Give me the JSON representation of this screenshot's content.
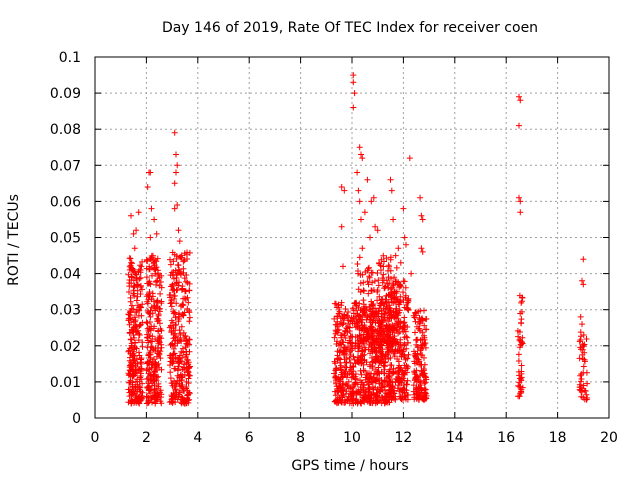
{
  "chart_data": {
    "type": "scatter",
    "title": "Day 146 of 2019, Rate Of TEC Index for receiver coen",
    "xlabel": "GPS time / hours",
    "ylabel": "ROTI / TECUs",
    "xlim": [
      0,
      20
    ],
    "ylim": [
      0,
      0.1
    ],
    "xticks": [
      "0",
      "2",
      "4",
      "6",
      "8",
      "10",
      "12",
      "14",
      "16",
      "18",
      "20"
    ],
    "yticks": [
      "0",
      "0.01",
      "0.02",
      "0.03",
      "0.04",
      "0.05",
      "0.06",
      "0.07",
      "0.08",
      "0.09",
      "0.1"
    ],
    "grid": true,
    "marker": "+",
    "color": "#ff0000",
    "clusters": [
      {
        "x_range": [
          1.3,
          1.85
        ],
        "y_range": [
          0.004,
          0.045
        ],
        "count": 260
      },
      {
        "x_range": [
          2.0,
          2.6
        ],
        "y_range": [
          0.004,
          0.045
        ],
        "count": 260
      },
      {
        "x_range": [
          2.9,
          3.7
        ],
        "y_range": [
          0.004,
          0.046
        ],
        "count": 300
      },
      {
        "x_range": [
          9.3,
          11.5
        ],
        "y_range": [
          0.004,
          0.032
        ],
        "count": 700
      },
      {
        "x_range": [
          10.2,
          11.8
        ],
        "y_range": [
          0.02,
          0.045
        ],
        "count": 220
      },
      {
        "x_range": [
          11.4,
          12.2
        ],
        "y_range": [
          0.005,
          0.038
        ],
        "count": 260
      },
      {
        "x_range": [
          12.4,
          12.9
        ],
        "y_range": [
          0.005,
          0.03
        ],
        "count": 160
      },
      {
        "x_range": [
          16.45,
          16.65
        ],
        "y_range": [
          0.006,
          0.035
        ],
        "count": 45
      },
      {
        "x_range": [
          18.85,
          19.15
        ],
        "y_range": [
          0.005,
          0.024
        ],
        "count": 45
      }
    ],
    "points": [
      [
        1.4,
        0.056
      ],
      [
        1.5,
        0.051
      ],
      [
        1.6,
        0.052
      ],
      [
        1.7,
        0.057
      ],
      [
        1.55,
        0.047
      ],
      [
        2.05,
        0.064
      ],
      [
        2.1,
        0.068
      ],
      [
        2.15,
        0.068
      ],
      [
        2.2,
        0.058
      ],
      [
        2.3,
        0.055
      ],
      [
        2.4,
        0.051
      ],
      [
        2.15,
        0.05
      ],
      [
        3.1,
        0.079
      ],
      [
        3.15,
        0.073
      ],
      [
        3.2,
        0.07
      ],
      [
        3.15,
        0.068
      ],
      [
        3.1,
        0.065
      ],
      [
        3.2,
        0.059
      ],
      [
        3.1,
        0.058
      ],
      [
        3.3,
        0.049
      ],
      [
        3.25,
        0.052
      ],
      [
        9.6,
        0.064
      ],
      [
        9.7,
        0.063
      ],
      [
        9.6,
        0.053
      ],
      [
        9.65,
        0.042
      ],
      [
        10.05,
        0.095
      ],
      [
        10.05,
        0.093
      ],
      [
        10.1,
        0.09
      ],
      [
        10.05,
        0.086
      ],
      [
        10.3,
        0.075
      ],
      [
        10.35,
        0.073
      ],
      [
        10.4,
        0.072
      ],
      [
        10.2,
        0.068
      ],
      [
        10.25,
        0.063
      ],
      [
        10.3,
        0.06
      ],
      [
        10.35,
        0.055
      ],
      [
        10.6,
        0.066
      ],
      [
        10.75,
        0.06
      ],
      [
        10.85,
        0.061
      ],
      [
        10.5,
        0.057
      ],
      [
        10.9,
        0.053
      ],
      [
        10.7,
        0.05
      ],
      [
        10.4,
        0.047
      ],
      [
        11.0,
        0.052
      ],
      [
        11.5,
        0.066
      ],
      [
        11.55,
        0.063
      ],
      [
        11.6,
        0.055
      ],
      [
        11.8,
        0.047
      ],
      [
        11.9,
        0.043
      ],
      [
        11.7,
        0.045
      ],
      [
        12.0,
        0.058
      ],
      [
        12.05,
        0.05
      ],
      [
        12.1,
        0.048
      ],
      [
        12.25,
        0.072
      ],
      [
        12.3,
        0.04
      ],
      [
        12.65,
        0.061
      ],
      [
        12.7,
        0.056
      ],
      [
        12.75,
        0.055
      ],
      [
        12.7,
        0.047
      ],
      [
        12.75,
        0.046
      ],
      [
        16.5,
        0.089
      ],
      [
        16.55,
        0.088
      ],
      [
        16.5,
        0.081
      ],
      [
        16.5,
        0.061
      ],
      [
        16.55,
        0.06
      ],
      [
        16.55,
        0.057
      ],
      [
        19.0,
        0.044
      ],
      [
        18.95,
        0.038
      ],
      [
        19.0,
        0.037
      ],
      [
        18.9,
        0.028
      ],
      [
        18.95,
        0.026
      ]
    ]
  }
}
